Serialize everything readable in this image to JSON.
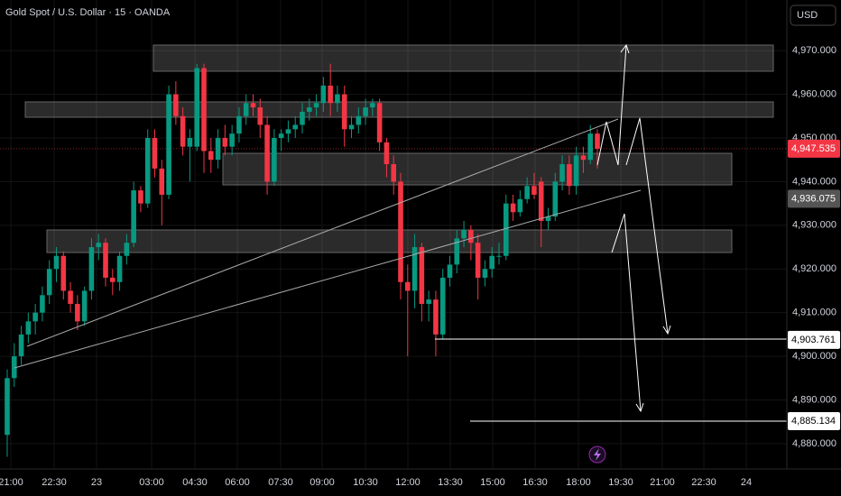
{
  "chart_data": {
    "type": "candlestick",
    "title": "Gold Spot / U.S. Dollar · 15 · OANDA",
    "currency": "USD",
    "up_color": "#089981",
    "down_color": "#f23645",
    "ylim": [
      4874.2,
      4981.6
    ],
    "yticks": [
      {
        "value": 4880,
        "label": "4,880.000"
      },
      {
        "value": 4890,
        "label": "4,890.000"
      },
      {
        "value": 4900,
        "label": "4,900.000"
      },
      {
        "value": 4910,
        "label": "4,910.000"
      },
      {
        "value": 4920,
        "label": "4,920.000"
      },
      {
        "value": 4930,
        "label": "4,930.000"
      },
      {
        "value": 4940,
        "label": "4,940.000"
      },
      {
        "value": 4950,
        "label": "4,950.000"
      },
      {
        "value": 4960,
        "label": "4,960.000"
      },
      {
        "value": 4970,
        "label": "4,970.000"
      }
    ],
    "xticks": [
      "21:00",
      "22:30",
      "23",
      "03:00",
      "04:30",
      "06:00",
      "07:30",
      "09:00",
      "10:30",
      "12:00",
      "13:30",
      "15:00",
      "16:30",
      "18:00",
      "19:30",
      "21:00",
      "22:30",
      "24"
    ],
    "price_labels": [
      {
        "value": 4947.535,
        "label": "4,947.535",
        "color": "#f23645"
      },
      {
        "value": 4936.075,
        "label": "4,936.075",
        "color": "#555555"
      },
      {
        "value": 4903.761,
        "label": "4,903.761",
        "color": "#ffffff"
      },
      {
        "value": 4885.134,
        "label": "4,885.134",
        "color": "#ffffff"
      }
    ],
    "candles": [
      [
        4882,
        4897,
        4877,
        4895
      ],
      [
        4895,
        4903,
        4893,
        4900
      ],
      [
        4900,
        4907,
        4898,
        4905
      ],
      [
        4905,
        4910,
        4903,
        4908
      ],
      [
        4908,
        4912,
        4905,
        4910
      ],
      [
        4910,
        4916,
        4908,
        4914
      ],
      [
        4914,
        4922,
        4912,
        4920
      ],
      [
        4920,
        4925,
        4917,
        4923
      ],
      [
        4923,
        4924,
        4913,
        4915
      ],
      [
        4915,
        4917,
        4910,
        4912
      ],
      [
        4912,
        4914,
        4906,
        4908
      ],
      [
        4908,
        4916,
        4907,
        4915
      ],
      [
        4915,
        4927,
        4913,
        4925
      ],
      [
        4925,
        4928,
        4922,
        4926
      ],
      [
        4926,
        4927,
        4916,
        4918
      ],
      [
        4918,
        4920,
        4914,
        4917
      ],
      [
        4917,
        4924,
        4915,
        4923
      ],
      [
        4923,
        4928,
        4921,
        4926
      ],
      [
        4926,
        4940,
        4925,
        4938
      ],
      [
        4938,
        4939,
        4933,
        4935
      ],
      [
        4935,
        4952,
        4934,
        4950
      ],
      [
        4950,
        4952,
        4941,
        4943
      ],
      [
        4943,
        4945,
        4930,
        4937
      ],
      [
        4937,
        4962,
        4936,
        4960
      ],
      [
        4960,
        4963,
        4953,
        4955
      ],
      [
        4955,
        4957,
        4946,
        4948
      ],
      [
        4948,
        4952,
        4940,
        4950
      ],
      [
        4948,
        4967,
        4947,
        4966
      ],
      [
        4966,
        4967,
        4942,
        4947
      ],
      [
        4947,
        4950,
        4942,
        4945
      ],
      [
        4945,
        4952,
        4943,
        4950
      ],
      [
        4950,
        4953,
        4946,
        4948
      ],
      [
        4948,
        4953,
        4946,
        4951
      ],
      [
        4951,
        4957,
        4949,
        4955
      ],
      [
        4955,
        4960,
        4953,
        4958
      ],
      [
        4958,
        4960,
        4955,
        4957
      ],
      [
        4957,
        4959,
        4950,
        4953
      ],
      [
        4953,
        4955,
        4937,
        4940
      ],
      [
        4940,
        4952,
        4939,
        4950
      ],
      [
        4950,
        4952,
        4947,
        4951
      ],
      [
        4951,
        4954,
        4949,
        4952
      ],
      [
        4952,
        4955,
        4950,
        4953
      ],
      [
        4953,
        4958,
        4951,
        4956
      ],
      [
        4956,
        4959,
        4954,
        4957
      ],
      [
        4957,
        4960,
        4955,
        4958
      ],
      [
        4958,
        4964,
        4956,
        4962
      ],
      [
        4962,
        4967,
        4955,
        4958
      ],
      [
        4958,
        4962,
        4956,
        4960
      ],
      [
        4960,
        4962,
        4948,
        4952
      ],
      [
        4952,
        4955,
        4950,
        4953
      ],
      [
        4953,
        4957,
        4951,
        4955
      ],
      [
        4955,
        4959,
        4953,
        4957
      ],
      [
        4957,
        4959,
        4955,
        4958
      ],
      [
        4958,
        4959,
        4947,
        4949
      ],
      [
        4949,
        4950,
        4941,
        4944
      ],
      [
        4944,
        4946,
        4937,
        4940
      ],
      [
        4940,
        4942,
        4913,
        4917
      ],
      [
        4917,
        4921,
        4900,
        4915
      ],
      [
        4915,
        4928,
        4911,
        4925
      ],
      [
        4925,
        4926,
        4908,
        4912
      ],
      [
        4912,
        4915,
        4908,
        4913
      ],
      [
        4913,
        4915,
        4900,
        4905
      ],
      [
        4905,
        4920,
        4904,
        4918
      ],
      [
        4918,
        4923,
        4916,
        4921
      ],
      [
        4921,
        4929,
        4919,
        4927
      ],
      [
        4927,
        4931,
        4925,
        4929
      ],
      [
        4929,
        4930,
        4922,
        4926
      ],
      [
        4926,
        4928,
        4913,
        4918
      ],
      [
        4918,
        4922,
        4916,
        4920
      ],
      [
        4920,
        4925,
        4918,
        4923
      ],
      [
        4923,
        4926,
        4921,
        4923
      ],
      [
        4923,
        4937,
        4922,
        4935
      ],
      [
        4935,
        4937,
        4931,
        4933
      ],
      [
        4933,
        4938,
        4932,
        4936
      ],
      [
        4936,
        4941,
        4935,
        4939
      ],
      [
        4939,
        4942,
        4936,
        4937
      ],
      [
        4940,
        4941,
        4925,
        4931
      ],
      [
        4931,
        4934,
        4929,
        4932
      ],
      [
        4932,
        4942,
        4931,
        4940
      ],
      [
        4940,
        4946,
        4938,
        4944
      ],
      [
        4944,
        4946,
        4937,
        4939
      ],
      [
        4939,
        4948,
        4937,
        4946
      ],
      [
        4946,
        4948,
        4942,
        4945
      ],
      [
        4945,
        4953,
        4944,
        4951
      ],
      [
        4951,
        4952,
        4943,
        4947.535
      ]
    ]
  }
}
